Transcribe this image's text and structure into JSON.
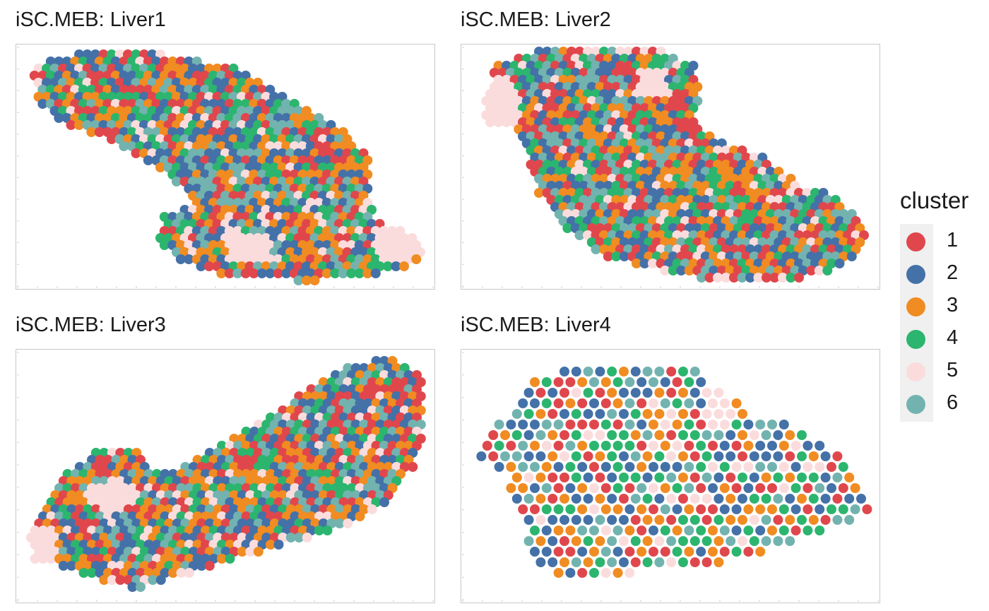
{
  "chart_data": [
    {
      "type": "scatter",
      "title": "iSC.MEB: Liver1",
      "xlabel": "",
      "ylabel": "",
      "grid": false
    },
    {
      "type": "scatter",
      "title": "iSC.MEB: Liver2",
      "xlabel": "",
      "ylabel": "",
      "grid": false
    },
    {
      "type": "scatter",
      "title": "iSC.MEB: Liver3",
      "xlabel": "",
      "ylabel": "",
      "grid": false
    },
    {
      "type": "scatter",
      "title": "iSC.MEB: Liver4",
      "xlabel": "",
      "ylabel": "",
      "grid": false
    }
  ],
  "legend": {
    "title": "cluster",
    "placement": "right",
    "items": [
      {
        "label": "1",
        "color": "#e0474c"
      },
      {
        "label": "2",
        "color": "#4471a8"
      },
      {
        "label": "3",
        "color": "#f08c22"
      },
      {
        "label": "4",
        "color": "#2cb56e"
      },
      {
        "label": "5",
        "color": "#fbdcdd"
      },
      {
        "label": "6",
        "color": "#72b3b0"
      }
    ]
  }
}
